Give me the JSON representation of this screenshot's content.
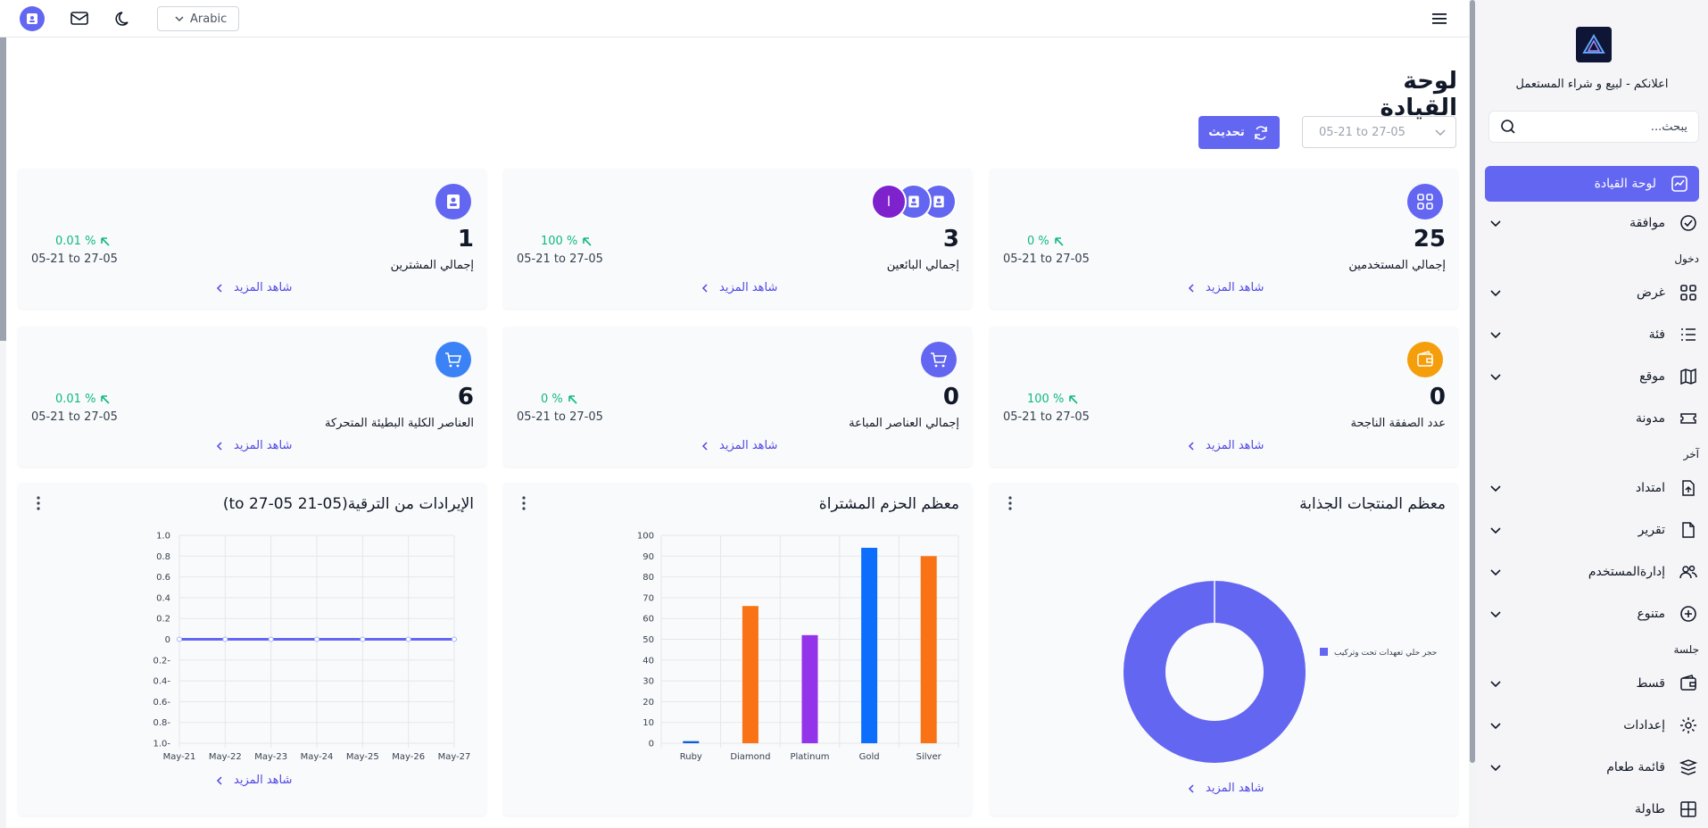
{
  "topbar": {
    "language": "Arabic"
  },
  "sidebar": {
    "brand": "اعلانكم - لبيع و شراء المستعمل",
    "search_placeholder": "يبحث...",
    "items": [
      {
        "label": "لوحة القيادة",
        "icon": "dashboard-icon",
        "active": true,
        "chevron": false
      },
      {
        "label": "موافقة",
        "icon": "check-circle-icon",
        "chevron": true
      },
      {
        "section": "دخول"
      },
      {
        "label": "غرض",
        "icon": "grid-icon",
        "chevron": true
      },
      {
        "label": "فئة",
        "icon": "list-icon",
        "chevron": true
      },
      {
        "label": "موقع",
        "icon": "map-icon",
        "chevron": true
      },
      {
        "label": "مدونة",
        "icon": "ticket-icon",
        "chevron": false
      },
      {
        "section": "آخر"
      },
      {
        "label": "امتداد",
        "icon": "upload-file-icon",
        "chevron": true
      },
      {
        "label": "تقرير",
        "icon": "file-icon",
        "chevron": true
      },
      {
        "label": "إدارةالمستخدم",
        "icon": "users-icon",
        "chevron": true
      },
      {
        "label": "متنوع",
        "icon": "plus-circle-icon",
        "chevron": true
      },
      {
        "section": "جلسة"
      },
      {
        "label": "قسط",
        "icon": "wallet-icon",
        "chevron": true
      },
      {
        "label": "إعدادات",
        "icon": "gear-icon",
        "chevron": true
      },
      {
        "label": "قائمة طعام",
        "icon": "menu-icon",
        "chevron": true
      },
      {
        "label": "طاولة",
        "icon": "table-icon",
        "chevron": false
      }
    ]
  },
  "header": {
    "title": "لوحة القيادة",
    "date_range": "05-21 to 27-05",
    "refresh_label": "تحديث"
  },
  "stats": [
    {
      "value": "25",
      "label": "إجمالي المستخدمين",
      "pct": "0 %",
      "range": "05-21 to 27-05",
      "more": "شاهد المزيد",
      "icon": "grid-icon",
      "color": "#6366f1"
    },
    {
      "value": "3",
      "label": "إجمالي البائعين",
      "pct": "100 %",
      "range": "05-21 to 27-05",
      "more": "شاهد المزيد",
      "icon": "avatar-group",
      "color": "#6366f1",
      "avatar_letter": "ا"
    },
    {
      "value": "1",
      "label": "إجمالي المشترين",
      "pct": "0.01 %",
      "range": "05-21 to 27-05",
      "more": "شاهد المزيد",
      "icon": "user-badge-icon",
      "color": "#6366f1"
    },
    {
      "value": "0",
      "label": "عدد الصفقة الناجحة",
      "pct": "100 %",
      "range": "05-21 to 27-05",
      "more": "شاهد المزيد",
      "icon": "wallet-icon",
      "color": "#f59e0b"
    },
    {
      "value": "0",
      "label": "إجمالي العناصر المباعة",
      "pct": "0 %",
      "range": "05-21 to 27-05",
      "more": "شاهد المزيد",
      "icon": "cart-icon",
      "color": "#6366f1"
    },
    {
      "value": "6",
      "label": "العناصر الكلية البطيئة المتحركة",
      "pct": "0.01 %",
      "range": "05-21 to 27-05",
      "more": "شاهد المزيد",
      "icon": "cart-icon",
      "color": "#3b82f6"
    }
  ],
  "panels": {
    "donut_title": "معظم المنتجات الجذابة",
    "donut_more": "شاهد المزيد",
    "bar_title": "معظم الحزم المشتراة",
    "line_title": "الإيرادات من الترقية(05-21 to 27-05)",
    "line_more": "شاهد المزيد"
  },
  "chart_data": [
    {
      "type": "pie",
      "title": "معظم المنتجات الجذابة",
      "labels": [
        "حجر حلي تعهدات تحت وتركيب"
      ],
      "values": [
        100
      ],
      "colors": [
        "#6366f1"
      ],
      "donut": true,
      "legend": "right"
    },
    {
      "type": "bar",
      "title": "معظم الحزم المشتراة",
      "categories": [
        "Ruby",
        "Diamond",
        "Platinum",
        "Gold",
        "Silver"
      ],
      "values": [
        1,
        66,
        52,
        94,
        90
      ],
      "colors": [
        "#0b5ed7",
        "#f97316",
        "#9333ea",
        "#0d6efd",
        "#f97316"
      ],
      "ylim": [
        0,
        100
      ],
      "yticks": [
        0,
        10,
        20,
        30,
        40,
        50,
        60,
        70,
        80,
        90,
        100
      ],
      "grid": true
    },
    {
      "type": "line",
      "title": "الإيرادات من الترقية(05-21 to 27-05)",
      "x": [
        "May-21",
        "May-22",
        "May-23",
        "May-24",
        "May-25",
        "May-26",
        "May-27"
      ],
      "values": [
        0,
        0,
        0,
        0,
        0,
        0,
        0
      ],
      "ylim": [
        -1.0,
        1.0
      ],
      "ytick_labels": [
        "1.0",
        "0.8",
        "0.6",
        "0.4",
        "0.2",
        "0",
        "0.2-",
        "0.4-",
        "0.6-",
        "0.8-",
        "1.0-"
      ],
      "color": "#6366f1",
      "grid": true
    }
  ]
}
